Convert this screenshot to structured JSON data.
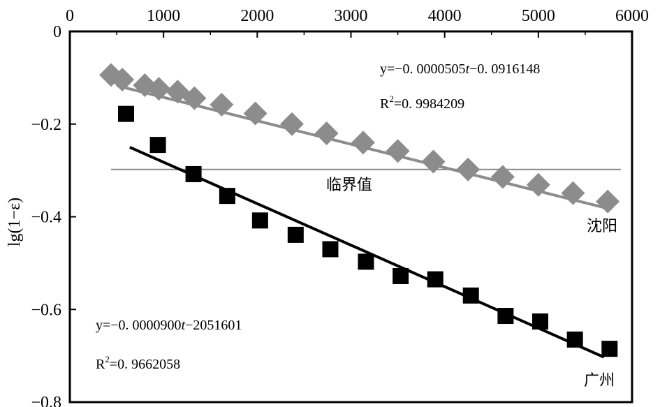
{
  "chart_data": {
    "type": "scatter",
    "ylabel": "lg(1−ε)",
    "xlabel": "",
    "xlim": [
      0,
      6000
    ],
    "ylim": [
      -0.8,
      0
    ],
    "x_ticks": [
      0,
      1000,
      2000,
      3000,
      4000,
      5000,
      6000
    ],
    "y_ticks": [
      0,
      -0.2,
      -0.4,
      -0.6,
      -0.8
    ],
    "y_tick_labels": [
      "0",
      "−0.2",
      "−0.4",
      "−0.6",
      "−0.8"
    ],
    "x_axis_position": "top",
    "grid": false,
    "colors": {
      "shenyang": "#8c8c8c",
      "guangzhou": "#000000",
      "threshold": "#8c8c8c"
    },
    "series": [
      {
        "name": "沈阳",
        "marker": "diamond",
        "x": [
          440,
          560,
          800,
          950,
          1150,
          1330,
          1620,
          1980,
          2370,
          2740,
          3130,
          3500,
          3880,
          4250,
          4620,
          5000,
          5370,
          5740
        ],
        "y": [
          -0.094,
          -0.104,
          -0.116,
          -0.124,
          -0.13,
          -0.144,
          -0.158,
          -0.177,
          -0.2,
          -0.22,
          -0.24,
          -0.258,
          -0.281,
          -0.298,
          -0.314,
          -0.331,
          -0.349,
          -0.367
        ],
        "fit_x": [
          500,
          5740
        ],
        "fit_y": [
          -0.117,
          -0.382
        ]
      },
      {
        "name": "广州",
        "marker": "square",
        "x": [
          600,
          940,
          1320,
          1680,
          2030,
          2410,
          2780,
          3160,
          3530,
          3900,
          4280,
          4650,
          5020,
          5390,
          5760
        ],
        "y": [
          -0.178,
          -0.245,
          -0.308,
          -0.355,
          -0.408,
          -0.439,
          -0.47,
          -0.497,
          -0.528,
          -0.535,
          -0.57,
          -0.614,
          -0.626,
          -0.665,
          -0.685
        ],
        "fit_x": [
          640,
          5700
        ],
        "fit_y": [
          -0.25,
          -0.703
        ]
      }
    ],
    "threshold": {
      "label": "临界值",
      "y": -0.298,
      "x_start": 440,
      "x_end": 5880
    },
    "annotations": {
      "shenyang_eq_a": "y=−0. 0000505",
      "shenyang_eq_t": "t",
      "shenyang_eq_b": "−0. 0916148",
      "shenyang_r_pre": "R",
      "shenyang_r_sup": "2",
      "shenyang_r_val": "=0. 9984209",
      "guangzhou_eq_a": "y=−0. 0000900",
      "guangzhou_eq_t": "t",
      "guangzhou_eq_b": "−2051601",
      "guangzhou_r_pre": "R",
      "guangzhou_r_sup": "2",
      "guangzhou_r_val": "=0. 9662058"
    }
  }
}
